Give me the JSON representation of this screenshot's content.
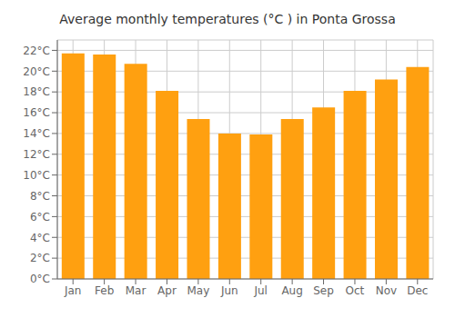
{
  "chart_data": {
    "type": "bar",
    "title": "Average monthly temperatures (°C ) in Ponta Grossa",
    "categories": [
      "Jan",
      "Feb",
      "Mar",
      "Apr",
      "May",
      "Jun",
      "Jul",
      "Aug",
      "Sep",
      "Oct",
      "Nov",
      "Dec"
    ],
    "values": [
      21.7,
      21.6,
      20.7,
      18.1,
      15.4,
      14.0,
      13.9,
      15.4,
      16.5,
      18.1,
      19.2,
      20.4
    ],
    "color": "#FFA010",
    "ylim": [
      0,
      23
    ],
    "yticks": [
      {
        "value": 0,
        "label": "0°C"
      },
      {
        "value": 2,
        "label": "2°C"
      },
      {
        "value": 4,
        "label": "4°C"
      },
      {
        "value": 6,
        "label": "6°C"
      },
      {
        "value": 8,
        "label": "8°C"
      },
      {
        "value": 10,
        "label": "10°C"
      },
      {
        "value": 12,
        "label": "12°C"
      },
      {
        "value": 14,
        "label": "14°C"
      },
      {
        "value": 16,
        "label": "16°C"
      },
      {
        "value": 18,
        "label": "18°C"
      },
      {
        "value": 20,
        "label": "20°C"
      },
      {
        "value": 22,
        "label": "22°C"
      }
    ],
    "grid": true
  }
}
